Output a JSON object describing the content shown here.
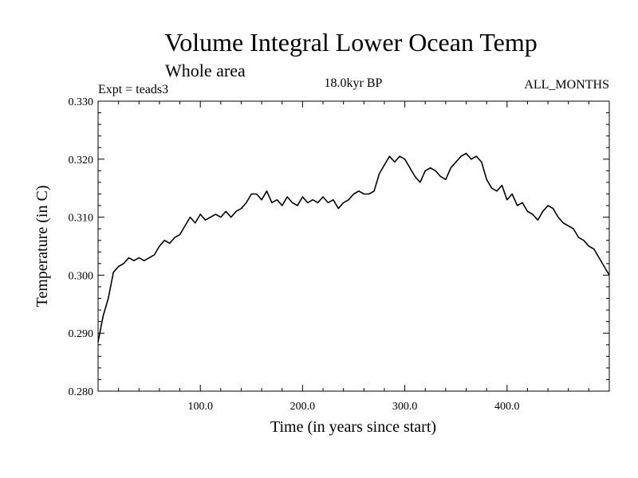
{
  "chart_data": {
    "type": "line",
    "title": "Volume Integral Lower Ocean Temp",
    "subtitle": "Whole area",
    "experiment_label": "Expt = teads3",
    "period_label": "18.0kyr BP",
    "months_label": "ALL_MONTHS",
    "xlabel": "Time (in years since start)",
    "ylabel": "Temperature (in C)",
    "xlim": [
      0,
      500
    ],
    "ylim": [
      0.28,
      0.33
    ],
    "x_ticks": [
      {
        "value": 100,
        "label": "100.0"
      },
      {
        "value": 200,
        "label": "200.0"
      },
      {
        "value": 300,
        "label": "300.0"
      },
      {
        "value": 400,
        "label": "400.0"
      }
    ],
    "y_ticks": [
      {
        "value": 0.28,
        "label": "0.280"
      },
      {
        "value": 0.29,
        "label": "0.290"
      },
      {
        "value": 0.3,
        "label": "0.300"
      },
      {
        "value": 0.31,
        "label": "0.310"
      },
      {
        "value": 0.32,
        "label": "0.320"
      },
      {
        "value": 0.33,
        "label": "0.330"
      }
    ],
    "series": [
      {
        "name": "Temperature",
        "x": [
          0,
          5,
          10,
          15,
          20,
          25,
          30,
          35,
          40,
          45,
          50,
          55,
          60,
          65,
          70,
          75,
          80,
          85,
          90,
          95,
          100,
          105,
          110,
          115,
          120,
          125,
          130,
          135,
          140,
          145,
          150,
          155,
          160,
          165,
          170,
          175,
          180,
          185,
          190,
          195,
          200,
          205,
          210,
          215,
          220,
          225,
          230,
          235,
          240,
          245,
          250,
          255,
          260,
          265,
          270,
          275,
          280,
          285,
          290,
          295,
          300,
          305,
          310,
          315,
          320,
          325,
          330,
          335,
          340,
          345,
          350,
          355,
          360,
          365,
          370,
          375,
          380,
          385,
          390,
          395,
          400,
          405,
          410,
          415,
          420,
          425,
          430,
          435,
          440,
          445,
          450,
          455,
          460,
          465,
          470,
          475,
          480,
          485,
          490,
          495,
          500
        ],
        "values": [
          0.2885,
          0.293,
          0.296,
          0.3005,
          0.3015,
          0.302,
          0.303,
          0.3025,
          0.303,
          0.3025,
          0.303,
          0.3035,
          0.305,
          0.306,
          0.3055,
          0.3065,
          0.307,
          0.3085,
          0.31,
          0.309,
          0.3105,
          0.3095,
          0.31,
          0.3105,
          0.31,
          0.311,
          0.31,
          0.311,
          0.3115,
          0.3125,
          0.314,
          0.314,
          0.313,
          0.3145,
          0.3125,
          0.313,
          0.312,
          0.3135,
          0.3125,
          0.312,
          0.3135,
          0.3125,
          0.313,
          0.3125,
          0.3135,
          0.3125,
          0.313,
          0.3115,
          0.3125,
          0.313,
          0.314,
          0.3145,
          0.314,
          0.314,
          0.3145,
          0.3175,
          0.319,
          0.3205,
          0.3195,
          0.3205,
          0.32,
          0.3185,
          0.317,
          0.316,
          0.318,
          0.3185,
          0.318,
          0.317,
          0.3165,
          0.3185,
          0.3195,
          0.3205,
          0.321,
          0.32,
          0.3205,
          0.3195,
          0.3165,
          0.315,
          0.3145,
          0.3155,
          0.313,
          0.314,
          0.312,
          0.3125,
          0.311,
          0.3105,
          0.3095,
          0.311,
          0.312,
          0.3115,
          0.31,
          0.309,
          0.3085,
          0.308,
          0.3065,
          0.306,
          0.305,
          0.3045,
          0.303,
          0.3015,
          0.3
        ]
      }
    ]
  }
}
